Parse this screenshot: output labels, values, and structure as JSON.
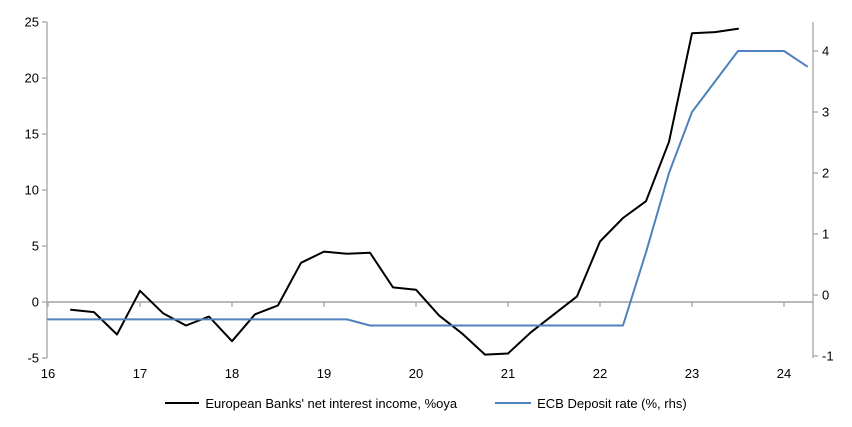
{
  "chart_data": {
    "type": "line",
    "title": "",
    "xlabel": "",
    "ylabel_left": "",
    "ylabel_right": "",
    "grid": "zero-line-only",
    "legend_position": "bottom-center",
    "x_axis": {
      "ticks": [
        16,
        17,
        18,
        19,
        20,
        21,
        22,
        23,
        24
      ],
      "range": [
        16,
        24.33
      ]
    },
    "left_axis": {
      "ticks": [
        -5,
        0,
        5,
        10,
        15,
        20,
        25
      ],
      "range": [
        -5,
        25
      ]
    },
    "right_axis": {
      "ticks": [
        -1,
        0,
        1,
        2,
        3,
        4
      ],
      "range": [
        -1,
        4
      ]
    },
    "colors": {
      "nii_line": "#000000",
      "ecb_line": "#4F81BD",
      "axis_gray": "#A6A6A6",
      "zero_line": "#A0A0A0"
    },
    "series": [
      {
        "name": "European Banks' net interest income, %oya",
        "axis": "left",
        "color": "#000000",
        "x": [
          16.25,
          16.5,
          16.75,
          17.0,
          17.25,
          17.5,
          17.75,
          18.0,
          18.25,
          18.5,
          18.75,
          19.0,
          19.25,
          19.5,
          19.75,
          20.0,
          20.25,
          20.5,
          20.75,
          21.0,
          21.25,
          21.5,
          21.75,
          22.0,
          22.25,
          22.5,
          22.75,
          23.0,
          23.25,
          23.5
        ],
        "y": [
          -0.7,
          -0.9,
          -2.9,
          1.0,
          -1.0,
          -2.1,
          -1.3,
          -3.5,
          -1.1,
          -0.3,
          3.5,
          4.5,
          4.3,
          4.4,
          1.3,
          1.1,
          -1.2,
          -2.8,
          -4.7,
          -4.6,
          -2.7,
          -1.1,
          0.5,
          5.4,
          7.5,
          9.0,
          14.3,
          24.0,
          24.1,
          24.4
        ]
      },
      {
        "name": "ECB Deposit rate (%, rhs)",
        "axis": "right",
        "color": "#4F81BD",
        "x": [
          16.0,
          16.25,
          16.5,
          16.75,
          17.0,
          17.25,
          17.5,
          17.75,
          18.0,
          18.25,
          18.5,
          18.75,
          19.0,
          19.25,
          19.5,
          19.75,
          20.0,
          20.25,
          20.5,
          20.75,
          21.0,
          21.25,
          21.5,
          21.75,
          22.0,
          22.25,
          22.5,
          22.75,
          23.0,
          23.25,
          23.5,
          23.75,
          24.0,
          24.25
        ],
        "y": [
          -0.4,
          -0.4,
          -0.4,
          -0.4,
          -0.4,
          -0.4,
          -0.4,
          -0.4,
          -0.4,
          -0.4,
          -0.4,
          -0.4,
          -0.4,
          -0.4,
          -0.5,
          -0.5,
          -0.5,
          -0.5,
          -0.5,
          -0.5,
          -0.5,
          -0.5,
          -0.5,
          -0.5,
          -0.5,
          -0.5,
          0.7,
          2.0,
          3.0,
          3.5,
          4.0,
          4.0,
          4.0,
          3.75
        ]
      }
    ]
  }
}
